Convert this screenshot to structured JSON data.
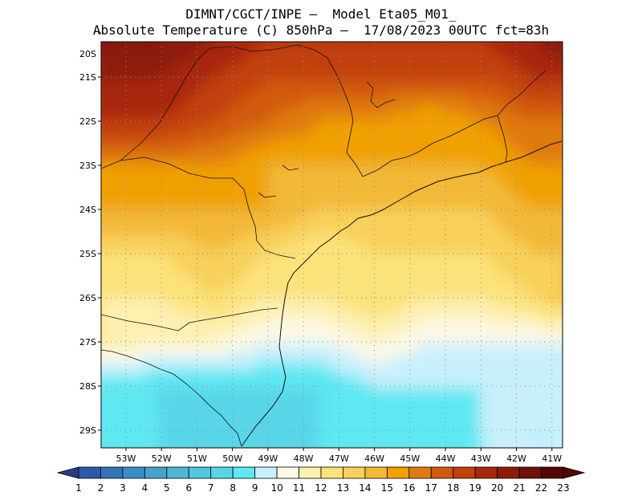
{
  "title_line1": "DIMNT/CGCT/INPE –  Model Eta05_M01_",
  "title_line2": "Absolute Temperature (C) 850hPa –  17/08/2023 00UTC fct=83h",
  "chart_data": {
    "type": "heatmap",
    "variable": "Absolute Temperature",
    "units": "C",
    "level": "850hPa",
    "model": "Eta05_M01_",
    "run": "17/08/2023 00UTC",
    "forecast_hour": "fct=83h",
    "x_range": [
      -53.7,
      -40.7
    ],
    "y_range": [
      -29.4,
      -20.2
    ],
    "x_ticks": [
      {
        "value": -53,
        "label": "53W"
      },
      {
        "value": -52,
        "label": "52W"
      },
      {
        "value": -51,
        "label": "51W"
      },
      {
        "value": -50,
        "label": "50W"
      },
      {
        "value": -49,
        "label": "49W"
      },
      {
        "value": -48,
        "label": "48W"
      },
      {
        "value": -47,
        "label": "47W"
      },
      {
        "value": -46,
        "label": "46W"
      },
      {
        "value": -45,
        "label": "45W"
      },
      {
        "value": -44,
        "label": "44W"
      },
      {
        "value": -43,
        "label": "43W"
      },
      {
        "value": -42,
        "label": "42W"
      },
      {
        "value": -41,
        "label": "41W"
      }
    ],
    "y_ticks": [
      {
        "value": -20,
        "label": "20S"
      },
      {
        "value": -21,
        "label": "21S"
      },
      {
        "value": -22,
        "label": "22S"
      },
      {
        "value": -23,
        "label": "23S"
      },
      {
        "value": -24,
        "label": "24S"
      },
      {
        "value": -25,
        "label": "25S"
      },
      {
        "value": -26,
        "label": "26S"
      },
      {
        "value": -27,
        "label": "27S"
      },
      {
        "value": -28,
        "label": "28S"
      },
      {
        "value": -29,
        "label": "29S"
      }
    ],
    "grid": "dotted",
    "colorbar": {
      "labels": [
        "1",
        "2",
        "3",
        "4",
        "5",
        "6",
        "7",
        "8",
        "9",
        "10",
        "11",
        "12",
        "13",
        "14",
        "15",
        "16",
        "17",
        "18",
        "19",
        "20",
        "21",
        "22",
        "23"
      ],
      "colors": [
        "#2a3a8c",
        "#2c5aa6",
        "#3274b6",
        "#3a8cc4",
        "#44a2cc",
        "#4eb6d6",
        "#52c6de",
        "#58d6e8",
        "#5ee8f2",
        "#c8f0fc",
        "#fdf8e6",
        "#fdf0b0",
        "#fbe27a",
        "#f8d05a",
        "#f3b838",
        "#f0a000",
        "#e07a10",
        "#d25a10",
        "#c2400e",
        "#a8280c",
        "#8c1c08",
        "#701008",
        "#520606"
      ]
    },
    "temperature_field": {
      "lons": [
        -53.7,
        -52.0,
        -50.5,
        -49.0,
        -47.5,
        -46.0,
        -44.5,
        -43.0,
        -41.5,
        -40.7
      ],
      "lats": [
        -20.2,
        -21.0,
        -22.0,
        -23.0,
        -24.0,
        -25.0,
        -26.0,
        -27.0,
        -28.0,
        -29.0,
        -29.4
      ],
      "values": [
        [
          22,
          22,
          21,
          20,
          20,
          20,
          20,
          20,
          21,
          22
        ],
        [
          21,
          21,
          20,
          19,
          19,
          19,
          19,
          19,
          20,
          20
        ],
        [
          20,
          20,
          19,
          18,
          17,
          17,
          16,
          17,
          18,
          18
        ],
        [
          17,
          17,
          17,
          16,
          16,
          16,
          16,
          16,
          17,
          17
        ],
        [
          16,
          16,
          16,
          16,
          15,
          15,
          15,
          15,
          16,
          16
        ],
        [
          14,
          14,
          15,
          14,
          13,
          14,
          14,
          14,
          15,
          15
        ],
        [
          13,
          13,
          14,
          13,
          13,
          14,
          13,
          13,
          14,
          15
        ],
        [
          13,
          12,
          12,
          11,
          11,
          12,
          11,
          11,
          11,
          11
        ],
        [
          9,
          9,
          9,
          9,
          9,
          10,
          10,
          10,
          10,
          10
        ],
        [
          9,
          9,
          8,
          8,
          9,
          9,
          9,
          10,
          10,
          10
        ],
        [
          9,
          9,
          8,
          8,
          9,
          9,
          9,
          10,
          10,
          10
        ]
      ]
    }
  }
}
